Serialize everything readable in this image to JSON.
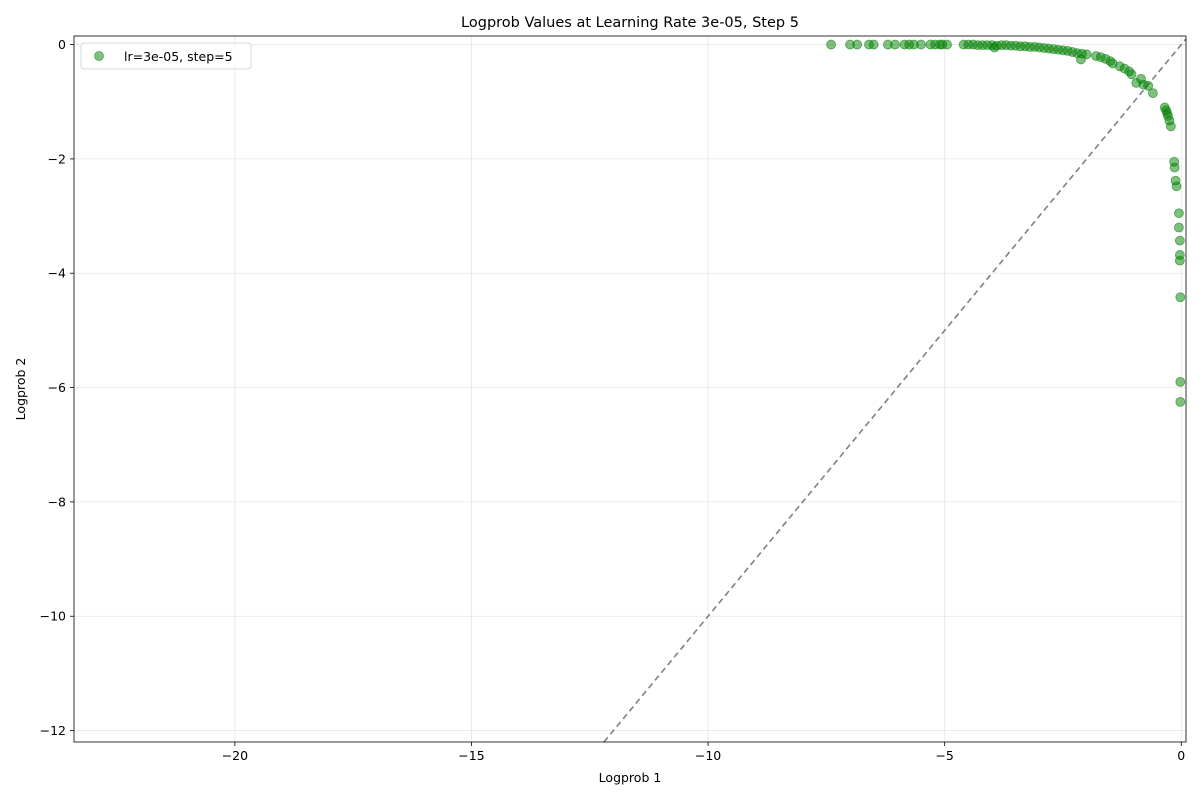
{
  "chart_data": {
    "type": "scatter",
    "title": "Logprob Values at Learning Rate 3e-05, Step 5",
    "xlabel": "Logprob 1",
    "ylabel": "Logprob 2",
    "xlim": [
      -23.4,
      0.1
    ],
    "ylim": [
      -12.2,
      0.15
    ],
    "x_ticks": [
      -20,
      -15,
      -10,
      -5,
      0
    ],
    "y_ticks": [
      0,
      -2,
      -4,
      -6,
      -8,
      -10,
      -12
    ],
    "tick_labels": {
      "x": [
        "−20",
        "−15",
        "−10",
        "−5",
        "0"
      ],
      "y": [
        "0",
        "−2",
        "−4",
        "−6",
        "−8",
        "−10",
        "−12"
      ]
    },
    "grid": true,
    "legend_position": "top-left",
    "reference_line": "y = x (dashed)",
    "colors": {
      "points": "#008000",
      "reference_line": "#808080"
    },
    "series": [
      {
        "name": "lr=3e-05, step=5",
        "points": [
          [
            -7.4,
            0.0
          ],
          [
            -7.0,
            0.0
          ],
          [
            -6.85,
            0.0
          ],
          [
            -6.6,
            0.0
          ],
          [
            -6.5,
            0.0
          ],
          [
            -6.2,
            0.0
          ],
          [
            -6.05,
            0.0
          ],
          [
            -5.85,
            0.0
          ],
          [
            -5.75,
            0.0
          ],
          [
            -5.65,
            0.0
          ],
          [
            -5.5,
            0.0
          ],
          [
            -5.3,
            0.0
          ],
          [
            -5.2,
            0.0
          ],
          [
            -5.1,
            0.0
          ],
          [
            -5.05,
            0.0
          ],
          [
            -4.95,
            0.0
          ],
          [
            -4.6,
            0.0
          ],
          [
            -4.5,
            0.0
          ],
          [
            -4.4,
            0.0
          ],
          [
            -4.3,
            -0.01
          ],
          [
            -4.2,
            -0.01
          ],
          [
            -4.1,
            -0.01
          ],
          [
            -4.0,
            -0.01
          ],
          [
            -3.95,
            -0.05
          ],
          [
            -3.9,
            -0.02
          ],
          [
            -3.8,
            -0.01
          ],
          [
            -3.7,
            -0.01
          ],
          [
            -3.6,
            -0.02
          ],
          [
            -3.5,
            -0.02
          ],
          [
            -3.4,
            -0.03
          ],
          [
            -3.3,
            -0.03
          ],
          [
            -3.2,
            -0.04
          ],
          [
            -3.1,
            -0.04
          ],
          [
            -3.0,
            -0.05
          ],
          [
            -2.9,
            -0.06
          ],
          [
            -2.8,
            -0.07
          ],
          [
            -2.7,
            -0.08
          ],
          [
            -2.6,
            -0.09
          ],
          [
            -2.5,
            -0.1
          ],
          [
            -2.4,
            -0.11
          ],
          [
            -2.3,
            -0.13
          ],
          [
            -2.2,
            -0.15
          ],
          [
            -2.1,
            -0.16
          ],
          [
            -2.12,
            -0.26
          ],
          [
            -2.0,
            -0.17
          ],
          [
            -1.8,
            -0.2
          ],
          [
            -1.7,
            -0.22
          ],
          [
            -1.6,
            -0.25
          ],
          [
            -1.5,
            -0.29
          ],
          [
            -1.45,
            -0.33
          ],
          [
            -1.3,
            -0.38
          ],
          [
            -1.2,
            -0.42
          ],
          [
            -1.1,
            -0.47
          ],
          [
            -1.05,
            -0.52
          ],
          [
            -0.95,
            -0.67
          ],
          [
            -0.85,
            -0.6
          ],
          [
            -0.8,
            -0.7
          ],
          [
            -0.7,
            -0.72
          ],
          [
            -0.6,
            -0.85
          ],
          [
            -0.35,
            -1.1
          ],
          [
            -0.32,
            -1.15
          ],
          [
            -0.3,
            -1.2
          ],
          [
            -0.28,
            -1.25
          ],
          [
            -0.25,
            -1.33
          ],
          [
            -0.22,
            -1.43
          ],
          [
            -0.15,
            -2.05
          ],
          [
            -0.14,
            -2.15
          ],
          [
            -0.12,
            -2.38
          ],
          [
            -0.1,
            -2.48
          ],
          [
            -0.05,
            -2.95
          ],
          [
            -0.05,
            -3.2
          ],
          [
            -0.03,
            -3.43
          ],
          [
            -0.03,
            -3.68
          ],
          [
            -0.03,
            -3.78
          ],
          [
            -0.02,
            -4.42
          ],
          [
            -0.02,
            -5.9
          ],
          [
            -0.02,
            -6.25
          ]
        ]
      }
    ]
  }
}
